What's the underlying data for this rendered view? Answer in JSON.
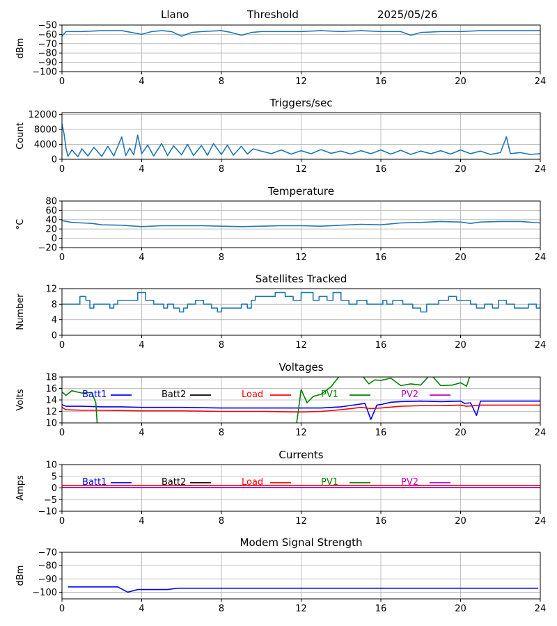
{
  "header": {
    "site": "Llano",
    "mode": "Threshold",
    "date": "2025/05/26"
  },
  "colors": {
    "default_line": "#1f77b4",
    "batt1": "#0000ff",
    "batt2": "#000000",
    "load": "#ff0000",
    "pv1": "#008000",
    "pv2": "#bf00bf",
    "grid": "#b0b0b0"
  },
  "chart_data": [
    {
      "type": "line",
      "title": "",
      "xlabel": "",
      "ylabel": "dBm",
      "xlim": [
        0,
        24
      ],
      "ylim": [
        -100,
        -50
      ],
      "xticks": [
        0,
        4,
        8,
        12,
        16,
        20,
        24
      ],
      "yticks": [
        -100,
        -90,
        -80,
        -70,
        -60,
        -50
      ],
      "grid": true,
      "series": [
        {
          "color": "#1f77b4",
          "x": [
            0,
            0.2,
            0.5,
            1,
            2,
            3,
            3.5,
            4,
            4.5,
            5,
            5.5,
            6,
            6.5,
            7,
            8,
            8.5,
            9,
            9.5,
            10,
            11,
            12,
            13,
            14,
            15,
            16,
            16.5,
            17,
            17.5,
            18,
            19,
            20,
            21,
            22,
            23,
            24
          ],
          "y": [
            -62,
            -57,
            -57,
            -57,
            -56,
            -56,
            -58,
            -60,
            -57,
            -56,
            -57,
            -62,
            -58,
            -57,
            -56,
            -58,
            -61,
            -58,
            -57,
            -57,
            -57,
            -56,
            -57,
            -56,
            -57,
            -57,
            -57,
            -61,
            -58,
            -57,
            -57,
            -56,
            -56,
            -56,
            -56
          ]
        }
      ]
    },
    {
      "type": "line",
      "title": "Triggers/sec",
      "xlabel": "",
      "ylabel": "Count",
      "xlim": [
        0,
        24
      ],
      "ylim": [
        0,
        12500
      ],
      "xticks": [
        0,
        4,
        8,
        12,
        16,
        20,
        24
      ],
      "yticks": [
        0,
        4000,
        8000,
        12000
      ],
      "grid": true,
      "series": [
        {
          "color": "#1f77b4",
          "x": [
            0,
            0.1,
            0.2,
            0.3,
            0.5,
            0.8,
            1,
            1.3,
            1.6,
            2,
            2.3,
            2.6,
            3,
            3.2,
            3.4,
            3.6,
            3.8,
            4,
            4.3,
            4.6,
            5,
            5.3,
            5.6,
            6,
            6.3,
            6.6,
            7,
            7.3,
            7.6,
            8,
            8.3,
            8.6,
            9,
            9.3,
            9.6,
            10,
            10.5,
            11,
            11.5,
            12,
            12.5,
            13,
            13.5,
            14,
            14.5,
            15,
            15.5,
            16,
            16.5,
            17,
            17.5,
            18,
            18.5,
            19,
            19.5,
            20,
            20.5,
            21,
            21.5,
            22,
            22.3,
            22.5,
            23,
            23.5,
            24
          ],
          "y": [
            9500,
            7000,
            3000,
            800,
            2500,
            700,
            2800,
            900,
            3200,
            800,
            3500,
            900,
            6000,
            1000,
            3000,
            1200,
            6500,
            1500,
            3800,
            900,
            4200,
            1000,
            3600,
            1200,
            4000,
            1000,
            3700,
            1100,
            4200,
            1300,
            3800,
            1100,
            3500,
            1400,
            2800,
            2200,
            1500,
            2500,
            1400,
            2300,
            1500,
            2600,
            1600,
            2200,
            1400,
            2300,
            1500,
            2500,
            1400,
            2400,
            1300,
            2200,
            1500,
            2300,
            1400,
            2500,
            1500,
            2200,
            1300,
            1800,
            6000,
            1500,
            1800,
            1300,
            1500
          ]
        }
      ]
    },
    {
      "type": "line",
      "title": "Temperature",
      "xlabel": "",
      "ylabel": "°C",
      "xlim": [
        0,
        24
      ],
      "ylim": [
        -20,
        80
      ],
      "xticks": [
        0,
        4,
        8,
        12,
        16,
        20,
        24
      ],
      "yticks": [
        -20,
        0,
        20,
        40,
        60,
        80
      ],
      "grid": true,
      "series": [
        {
          "color": "#1f77b4",
          "x": [
            0,
            0.5,
            1,
            1.5,
            2,
            3,
            4,
            5,
            6,
            7,
            8,
            9,
            10,
            11,
            12,
            13,
            14,
            15,
            16,
            17,
            18,
            19,
            20,
            20.5,
            21,
            22,
            23,
            24
          ],
          "y": [
            38,
            34,
            33,
            32,
            29,
            28,
            25,
            27,
            27,
            27,
            26,
            25,
            26,
            27,
            27,
            26,
            28,
            30,
            29,
            33,
            34,
            36,
            35,
            32,
            35,
            36,
            36,
            33
          ]
        }
      ]
    },
    {
      "type": "line",
      "title": "Satellites Tracked",
      "xlabel": "",
      "ylabel": "Number",
      "xlim": [
        0,
        24
      ],
      "ylim": [
        0,
        12
      ],
      "xticks": [
        0,
        4,
        8,
        12,
        16,
        20,
        24
      ],
      "yticks": [
        0,
        4,
        8,
        12
      ],
      "grid": true,
      "series": [
        {
          "color": "#1f77b4",
          "step": true,
          "x": [
            0,
            0.9,
            1.2,
            1.4,
            1.6,
            2.4,
            2.6,
            2.8,
            3.8,
            4.2,
            4.6,
            5.1,
            5.3,
            5.6,
            5.9,
            6.1,
            6.3,
            6.7,
            7.1,
            7.5,
            7.8,
            8.0,
            9.0,
            9.3,
            9.5,
            9.7,
            10.7,
            11.2,
            11.6,
            12.0,
            12.6,
            12.9,
            13.3,
            13.6,
            14.0,
            14.4,
            14.8,
            15.3,
            16.1,
            16.3,
            16.6,
            17.1,
            17.6,
            18.0,
            18.3,
            18.9,
            19.4,
            19.8,
            20.5,
            20.8,
            21.2,
            21.6,
            21.9,
            22.3,
            22.7,
            23.4,
            23.8,
            24
          ],
          "y": [
            8,
            10,
            9,
            7,
            8,
            7,
            8,
            9,
            11,
            9,
            8,
            7,
            8,
            7,
            6,
            7,
            8,
            9,
            8,
            7,
            6,
            7,
            8,
            7,
            9,
            10,
            11,
            10,
            9,
            11,
            9,
            10,
            9,
            11,
            9,
            8,
            9,
            8,
            9,
            8,
            9,
            8,
            7,
            6,
            8,
            9,
            10,
            9,
            8,
            7,
            8,
            7,
            9,
            8,
            7,
            8,
            7,
            8
          ]
        }
      ]
    },
    {
      "type": "line",
      "title": "Voltages",
      "xlabel": "",
      "ylabel": "Volts",
      "xlim": [
        0,
        24
      ],
      "ylim": [
        10,
        18
      ],
      "xticks": [
        0,
        4,
        8,
        12,
        16,
        20,
        24
      ],
      "yticks": [
        10,
        12,
        14,
        16,
        18
      ],
      "grid": true,
      "legend": [
        {
          "label": "Batt1",
          "color": "#0000ff"
        },
        {
          "label": "Batt2",
          "color": "#000000"
        },
        {
          "label": "Load",
          "color": "#ff0000"
        },
        {
          "label": "PV1",
          "color": "#008000"
        },
        {
          "label": "PV2",
          "color": "#bf00bf"
        }
      ],
      "series": [
        {
          "name": "Batt1",
          "color": "#0000ff",
          "x": [
            0,
            0.2,
            1,
            2,
            3,
            4,
            6,
            8,
            10,
            12,
            13,
            14,
            15,
            15.2,
            15.5,
            15.8,
            16,
            16.5,
            17,
            18,
            19,
            20,
            20.2,
            20.5,
            20.8,
            21,
            22,
            23,
            24
          ],
          "y": [
            13.2,
            12.9,
            12.9,
            12.8,
            12.8,
            12.7,
            12.7,
            12.6,
            12.6,
            12.6,
            12.6,
            12.8,
            13.3,
            13.4,
            10.6,
            13.1,
            13.2,
            13.6,
            13.7,
            13.8,
            13.7,
            13.8,
            13.4,
            13.5,
            11.3,
            13.8,
            13.8,
            13.8,
            13.8
          ]
        },
        {
          "name": "Load",
          "color": "#ff0000",
          "x": [
            0,
            0.2,
            1,
            2,
            4,
            6,
            8,
            10,
            12,
            13,
            14,
            15,
            15.5,
            16,
            17,
            18,
            19,
            20,
            20.3,
            21,
            22,
            23,
            24
          ],
          "y": [
            12.7,
            12.3,
            12.2,
            12.2,
            12.1,
            12.1,
            12.0,
            12.0,
            11.9,
            12.0,
            12.3,
            12.7,
            12.5,
            12.6,
            12.9,
            13.0,
            13.0,
            13.1,
            12.9,
            13.1,
            13.1,
            13.1,
            13.1
          ]
        },
        {
          "name": "PV1",
          "color": "#008000",
          "x": [
            0,
            0.2,
            0.5,
            1,
            1.5,
            1.7,
            1.8,
            11.7,
            12.0,
            12.3,
            12.6,
            13,
            13.5,
            14.0,
            14.3,
            14.5,
            15.0,
            15.4,
            15.7,
            16,
            16.5,
            17,
            17.5,
            18,
            18.5,
            19,
            19.6,
            20,
            20.3,
            20.5,
            24
          ],
          "y": [
            15.4,
            14.8,
            15.6,
            15.2,
            15.3,
            13.5,
            8.0,
            8.0,
            15.8,
            13.5,
            14.6,
            15.0,
            16.3,
            18.5,
            18.5,
            18.5,
            18.5,
            16.8,
            17.5,
            17.4,
            17.8,
            16.5,
            16.8,
            16.6,
            18.5,
            16.5,
            16.6,
            17.0,
            16.4,
            18.5,
            18.5
          ]
        }
      ]
    },
    {
      "type": "line",
      "title": "Currents",
      "xlabel": "",
      "ylabel": "Amps",
      "xlim": [
        0,
        24
      ],
      "ylim": [
        -10,
        10
      ],
      "xticks": [
        0,
        4,
        8,
        12,
        16,
        20,
        24
      ],
      "yticks": [
        -10,
        -5,
        0,
        5,
        10
      ],
      "grid": true,
      "legend": [
        {
          "label": "Batt1",
          "color": "#0000ff"
        },
        {
          "label": "Batt2",
          "color": "#000000"
        },
        {
          "label": "Load",
          "color": "#ff0000"
        },
        {
          "label": "PV1",
          "color": "#008000"
        },
        {
          "label": "PV2",
          "color": "#bf00bf"
        }
      ],
      "series": [
        {
          "name": "Load",
          "color": "#ff0000",
          "x": [
            0,
            2,
            4,
            6,
            8,
            10,
            12,
            14,
            16,
            18,
            20,
            22,
            24
          ],
          "y": [
            1.1,
            1.0,
            1.0,
            1.1,
            1.0,
            1.0,
            1.0,
            1.0,
            1.0,
            1.0,
            1.0,
            1.0,
            1.0
          ]
        },
        {
          "name": "PV2",
          "color": "#bf00bf",
          "x": [
            0,
            24
          ],
          "y": [
            0.2,
            0.2
          ]
        }
      ]
    },
    {
      "type": "line",
      "title": "Modem Signal Strength",
      "xlabel": "",
      "ylabel": "dBm",
      "xlim": [
        0,
        24
      ],
      "ylim": [
        -105,
        -70
      ],
      "xticks": [
        0,
        4,
        8,
        12,
        16,
        20,
        24
      ],
      "yticks": [
        -100,
        -90,
        -80,
        -70
      ],
      "grid": true,
      "series": [
        {
          "color": "#0000ff",
          "x": [
            0.3,
            1,
            2,
            2.8,
            3.3,
            3.8,
            4.5,
            5.3,
            5.8,
            8,
            12,
            16,
            20,
            23.9
          ],
          "y": [
            -96,
            -96,
            -96,
            -96,
            -100,
            -98,
            -98,
            -98,
            -97,
            -97,
            -97,
            -97,
            -97,
            -97
          ]
        }
      ]
    }
  ]
}
